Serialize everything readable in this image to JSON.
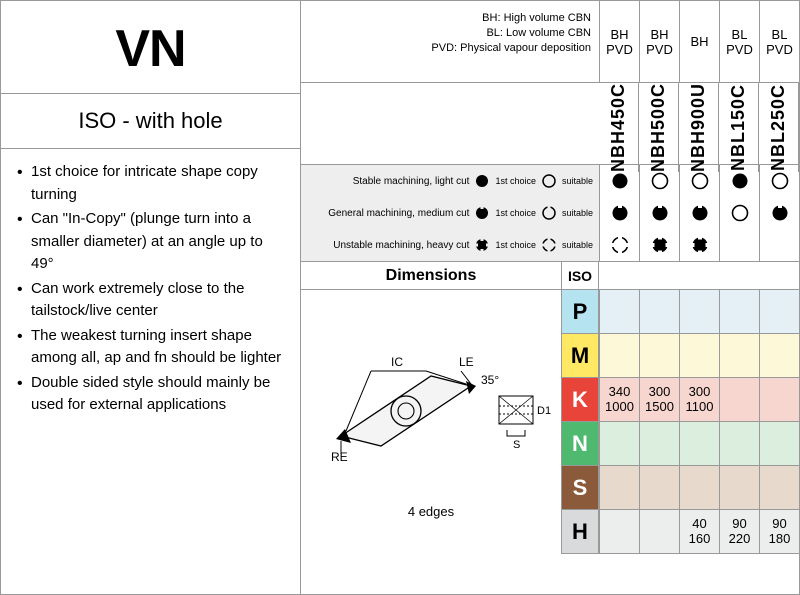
{
  "title": "VN",
  "subtitle": "ISO - with hole",
  "bullets": [
    "1st choice for intricate shape copy turning",
    "Can \"In-Copy\" (plunge turn into a smaller diameter) at an angle up to 49°",
    "Can work extremely close to the tailstock/live center",
    "The weakest turning insert shape among all, ap and fn should be lighter",
    "Double sided style should mainly be used for external applications"
  ],
  "legend": {
    "l1": "BH: High volume CBN",
    "l2": "BL: Low volume CBN",
    "l3": "PVD: Physical vapour deposition"
  },
  "grades": [
    {
      "code": "NBH450C",
      "coat": "BH PVD"
    },
    {
      "code": "NBH500C",
      "coat": "BH PVD"
    },
    {
      "code": "NBH900U",
      "coat": "BH"
    },
    {
      "code": "NBL150C",
      "coat": "BL PVD"
    },
    {
      "code": "NBL250C",
      "coat": "BL PVD"
    }
  ],
  "suitability": {
    "rows": [
      {
        "label": "Stable machining, light cut",
        "choice": "1st choice",
        "alt": "suitable"
      },
      {
        "label": "General machining, medium cut",
        "choice": "1st choice",
        "alt": "suitable"
      },
      {
        "label": "Unstable machining, heavy cut",
        "choice": "1st choice",
        "alt": "suitable"
      }
    ],
    "matrix": [
      [
        "solid",
        "ring",
        "ring",
        "solid",
        "ring"
      ],
      [
        "gen1",
        "gen1",
        "gen1",
        "ring",
        "gen1"
      ],
      [
        "heavy2",
        "heavy1",
        "heavy1",
        "",
        ""
      ]
    ]
  },
  "dim_header": "Dimensions",
  "iso_header": "ISO",
  "edges": "4 edges",
  "diagram": {
    "IC": "IC",
    "LE": "LE",
    "RE": "RE",
    "D1": "D1",
    "S": "S",
    "angle": "35°"
  },
  "materials": [
    {
      "code": "P",
      "bg": "#b6e3f0",
      "fg": "#000"
    },
    {
      "code": "M",
      "bg": "#ffe863",
      "fg": "#000"
    },
    {
      "code": "K",
      "bg": "#e8443a",
      "fg": "#fff"
    },
    {
      "code": "N",
      "bg": "#4eb96f",
      "fg": "#fff"
    },
    {
      "code": "S",
      "bg": "#8a5a3b",
      "fg": "#fff"
    },
    {
      "code": "H",
      "bg": "#d9dadc",
      "fg": "#000"
    }
  ],
  "material_bg": {
    "P": "#e4f0f5",
    "M": "#fdf8d8",
    "K": "#f7d6cf",
    "N": "#dcefdf",
    "S": "#e7dacd",
    "H": "#eceded"
  },
  "material_data": {
    "K": [
      [
        "340",
        "1000"
      ],
      [
        "300",
        "1500"
      ],
      [
        "300",
        "1100"
      ],
      [
        "",
        ""
      ],
      [
        "",
        ""
      ]
    ],
    "H": [
      [
        "",
        ""
      ],
      [
        "",
        ""
      ],
      [
        "40",
        "160"
      ],
      [
        "90",
        "220"
      ],
      [
        "90",
        "180"
      ]
    ]
  }
}
